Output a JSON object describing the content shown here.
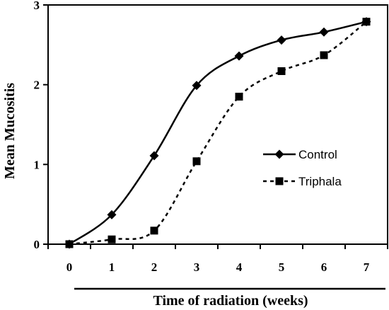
{
  "chart_data": {
    "type": "line",
    "title": "",
    "xlabel": "Time of radiation (weeks)",
    "ylabel": "Mean Mucositis",
    "x": [
      0,
      1,
      2,
      3,
      4,
      5,
      6,
      7
    ],
    "xlim": [
      -0.5,
      7.5
    ],
    "ylim": [
      0,
      3
    ],
    "yticks": [
      0,
      1,
      2,
      3
    ],
    "grid": false,
    "legend_position": "right-middle",
    "series": [
      {
        "name": "Control",
        "marker": "diamond",
        "line_style": "solid",
        "color": "#000000",
        "values": [
          0.0,
          0.37,
          1.11,
          1.99,
          2.36,
          2.56,
          2.66,
          2.79
        ]
      },
      {
        "name": "Triphala",
        "marker": "square",
        "line_style": "dashed",
        "color": "#000000",
        "values": [
          0.0,
          0.06,
          0.17,
          1.04,
          1.85,
          2.17,
          2.37,
          2.79
        ]
      }
    ]
  }
}
